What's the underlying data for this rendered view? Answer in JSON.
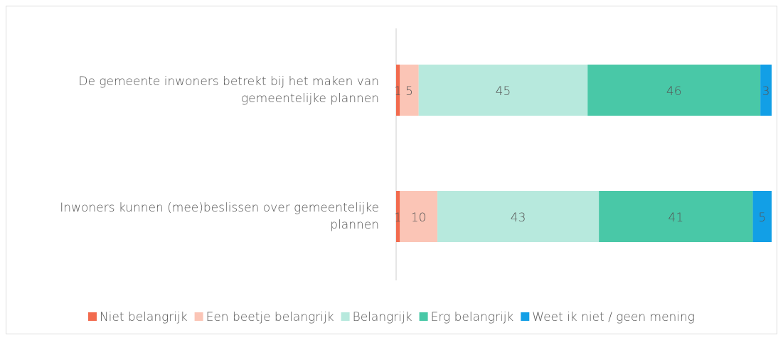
{
  "chart_data": {
    "type": "stacked-bar-horizontal",
    "categories": [
      "De gemeente inwoners betrekt bij het maken van gemeentelijke plannen",
      "Inwoners kunnen (mee)beslissen over gemeentelijke plannen"
    ],
    "series": [
      {
        "name": "Niet belangrijk",
        "color": "#f26b4e",
        "values": [
          1,
          1
        ]
      },
      {
        "name": "Een beetje belangrijk",
        "color": "#fbc5b6",
        "values": [
          5,
          10
        ]
      },
      {
        "name": "Belangrijk",
        "color": "#b7e9dd",
        "values": [
          45,
          43
        ]
      },
      {
        "name": "Erg belangrijk",
        "color": "#49c8a7",
        "values": [
          46,
          41
        ]
      },
      {
        "name": "Weet ik niet / geen mening",
        "color": "#129fe6",
        "values": [
          3,
          5
        ]
      }
    ],
    "xlim": [
      0,
      100
    ],
    "legend": "bottom"
  }
}
